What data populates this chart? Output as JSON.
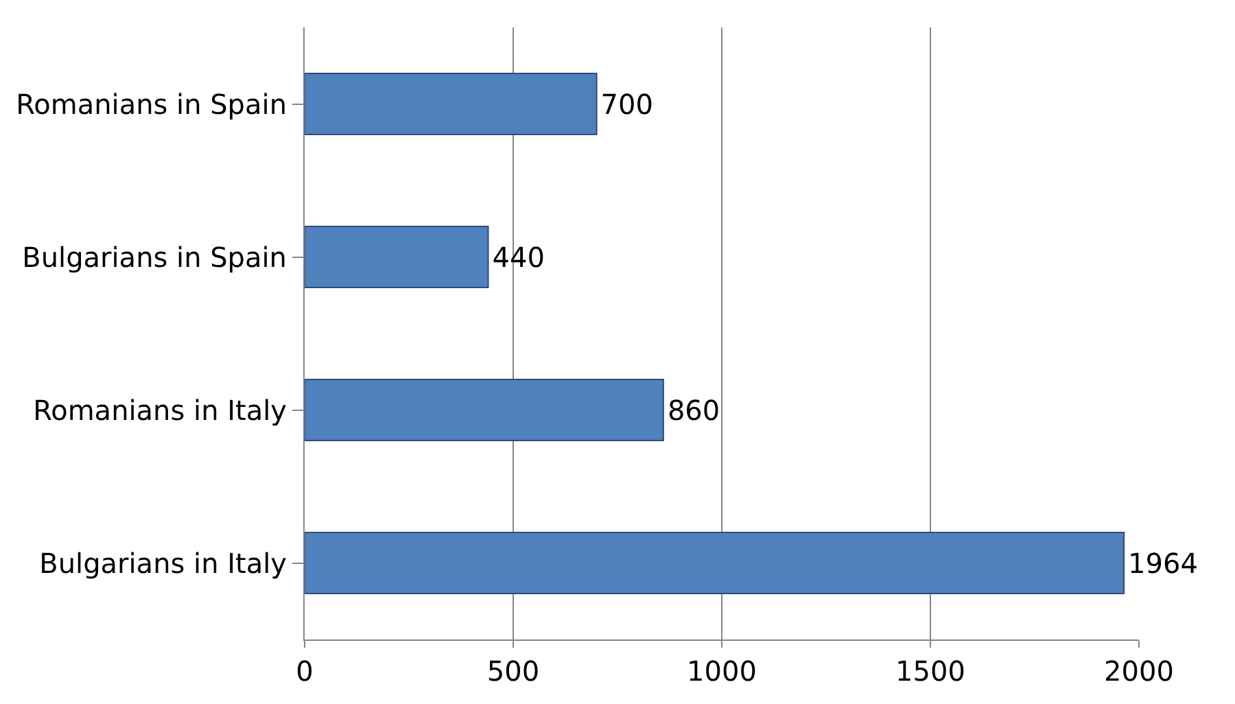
{
  "chart_data": {
    "type": "bar",
    "orientation": "horizontal",
    "categories": [
      "Romanians in Spain",
      "Bulgarians in Spain",
      "Romanians in Italy",
      "Bulgarians in Italy"
    ],
    "values": [
      700,
      440,
      860,
      1964
    ],
    "color": "#4f81bd",
    "xlim": [
      0,
      2000
    ],
    "xticks": [
      0,
      500,
      1000,
      1500,
      2000
    ],
    "grid": "x",
    "data_labels": true
  }
}
